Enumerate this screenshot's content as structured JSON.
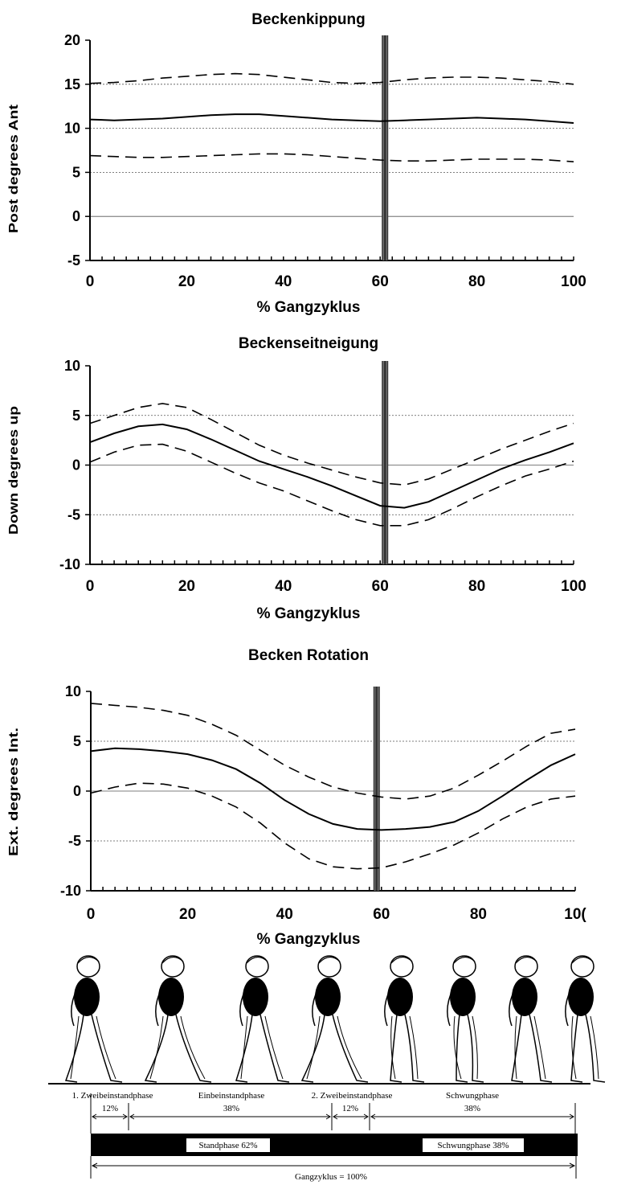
{
  "chart_data": [
    {
      "type": "line",
      "title": "Beckenkippung",
      "xlabel": "% Gangzyklus",
      "ylabel": "Post degrees Ant",
      "xlim": [
        0,
        100
      ],
      "ylim": [
        -5,
        20
      ],
      "xticks": [
        "0",
        "20",
        "40",
        "60",
        "80",
        "100"
      ],
      "yticks": [
        "20",
        "15",
        "10",
        "5",
        "0",
        "-5"
      ],
      "grid_y": [
        15,
        10,
        5,
        0
      ],
      "marker_x": 61,
      "series": [
        {
          "style": "solid",
          "x": [
            0,
            5,
            10,
            15,
            20,
            25,
            30,
            35,
            40,
            45,
            50,
            55,
            60,
            65,
            70,
            75,
            80,
            85,
            90,
            95,
            100
          ],
          "y": [
            11.0,
            10.9,
            11.0,
            11.1,
            11.3,
            11.5,
            11.6,
            11.6,
            11.4,
            11.2,
            11.0,
            10.9,
            10.8,
            10.9,
            11.0,
            11.1,
            11.2,
            11.1,
            11.0,
            10.8,
            10.6
          ]
        },
        {
          "style": "dashed",
          "x": [
            0,
            5,
            10,
            15,
            20,
            25,
            30,
            35,
            40,
            45,
            50,
            55,
            60,
            65,
            70,
            75,
            80,
            85,
            90,
            95,
            100
          ],
          "y": [
            15.1,
            15.2,
            15.4,
            15.7,
            15.9,
            16.1,
            16.2,
            16.1,
            15.8,
            15.5,
            15.2,
            15.1,
            15.2,
            15.5,
            15.7,
            15.8,
            15.8,
            15.7,
            15.5,
            15.3,
            15.0
          ]
        },
        {
          "style": "dashed",
          "x": [
            0,
            5,
            10,
            15,
            20,
            25,
            30,
            35,
            40,
            45,
            50,
            55,
            60,
            65,
            70,
            75,
            80,
            85,
            90,
            95,
            100
          ],
          "y": [
            6.9,
            6.8,
            6.7,
            6.7,
            6.8,
            6.9,
            7.0,
            7.1,
            7.1,
            7.0,
            6.8,
            6.6,
            6.4,
            6.3,
            6.3,
            6.4,
            6.5,
            6.5,
            6.5,
            6.4,
            6.2
          ]
        }
      ]
    },
    {
      "type": "line",
      "title": "Beckenseitneigung",
      "xlabel": "% Gangzyklus",
      "ylabel": "Down degrees up",
      "xlim": [
        0,
        100
      ],
      "ylim": [
        -10,
        10
      ],
      "xticks": [
        "0",
        "20",
        "40",
        "60",
        "80",
        "100"
      ],
      "yticks": [
        "10",
        "5",
        "0",
        "-5",
        "-10"
      ],
      "grid_y": [
        5,
        0,
        -5
      ],
      "marker_x": 61,
      "series": [
        {
          "style": "solid",
          "x": [
            0,
            5,
            10,
            15,
            20,
            25,
            30,
            35,
            40,
            45,
            50,
            55,
            60,
            65,
            70,
            75,
            80,
            85,
            90,
            95,
            100
          ],
          "y": [
            2.3,
            3.2,
            3.9,
            4.1,
            3.6,
            2.6,
            1.5,
            0.4,
            -0.4,
            -1.2,
            -2.1,
            -3.1,
            -4.1,
            -4.3,
            -3.7,
            -2.6,
            -1.5,
            -0.4,
            0.5,
            1.3,
            2.2
          ]
        },
        {
          "style": "dashed",
          "x": [
            0,
            5,
            10,
            15,
            20,
            25,
            30,
            35,
            40,
            45,
            50,
            55,
            60,
            65,
            70,
            75,
            80,
            85,
            90,
            95,
            100
          ],
          "y": [
            4.2,
            5.0,
            5.8,
            6.2,
            5.8,
            4.6,
            3.3,
            2.0,
            1.0,
            0.2,
            -0.5,
            -1.2,
            -1.8,
            -2.0,
            -1.4,
            -0.4,
            0.6,
            1.6,
            2.5,
            3.4,
            4.2
          ]
        },
        {
          "style": "dashed",
          "x": [
            0,
            5,
            10,
            15,
            20,
            25,
            30,
            35,
            40,
            45,
            50,
            55,
            60,
            65,
            70,
            75,
            80,
            85,
            90,
            95,
            100
          ],
          "y": [
            0.3,
            1.3,
            2.0,
            2.1,
            1.4,
            0.3,
            -0.8,
            -1.8,
            -2.6,
            -3.6,
            -4.6,
            -5.5,
            -6.1,
            -6.1,
            -5.5,
            -4.4,
            -3.2,
            -2.1,
            -1.1,
            -0.4,
            0.4
          ]
        }
      ]
    },
    {
      "type": "line",
      "title": "Becken Rotation",
      "xlabel": "% Gangzyklus",
      "ylabel": "Ext. degrees Int.",
      "xlim": [
        0,
        100
      ],
      "ylim": [
        -10,
        10
      ],
      "xticks": [
        "0",
        "20",
        "40",
        "60",
        "80",
        "10("
      ],
      "yticks": [
        "10",
        "5",
        "0",
        "-5",
        "-10"
      ],
      "grid_y": [
        5,
        0,
        -5
      ],
      "marker_x": 59,
      "series": [
        {
          "style": "solid",
          "x": [
            0,
            5,
            10,
            15,
            20,
            25,
            30,
            35,
            40,
            45,
            50,
            55,
            60,
            65,
            70,
            75,
            80,
            85,
            90,
            95,
            100
          ],
          "y": [
            4.0,
            4.3,
            4.2,
            4.0,
            3.7,
            3.1,
            2.2,
            0.8,
            -0.9,
            -2.3,
            -3.3,
            -3.8,
            -3.9,
            -3.8,
            -3.6,
            -3.1,
            -2.0,
            -0.5,
            1.1,
            2.6,
            3.7
          ]
        },
        {
          "style": "dashed",
          "x": [
            0,
            5,
            10,
            15,
            20,
            25,
            30,
            35,
            40,
            45,
            50,
            55,
            60,
            65,
            70,
            75,
            80,
            85,
            90,
            95,
            100
          ],
          "y": [
            8.8,
            8.6,
            8.4,
            8.1,
            7.6,
            6.7,
            5.6,
            4.1,
            2.6,
            1.4,
            0.4,
            -0.2,
            -0.6,
            -0.8,
            -0.5,
            0.3,
            1.6,
            3.0,
            4.5,
            5.8,
            6.2
          ]
        },
        {
          "style": "dashed",
          "x": [
            0,
            5,
            10,
            15,
            20,
            25,
            30,
            35,
            40,
            45,
            50,
            55,
            60,
            65,
            70,
            75,
            80,
            85,
            90,
            95,
            100
          ],
          "y": [
            -0.2,
            0.4,
            0.8,
            0.7,
            0.3,
            -0.5,
            -1.6,
            -3.2,
            -5.2,
            -6.8,
            -7.6,
            -7.8,
            -7.7,
            -7.1,
            -6.3,
            -5.4,
            -4.2,
            -2.8,
            -1.6,
            -0.8,
            -0.5
          ]
        }
      ]
    }
  ],
  "gait": {
    "phase_labels": [
      {
        "name": "1. Zweibeinstandphase",
        "pct": "12%"
      },
      {
        "name": "Einbeinstandphase",
        "pct": "38%"
      },
      {
        "name": "2. Zweibeinstandphase",
        "pct": "12%"
      },
      {
        "name": "Schwungphase",
        "pct": "38%"
      }
    ],
    "bar_stand": "Standphase 62%",
    "bar_swing": "Schwungphase 38%",
    "cycle": "Gangzyklus = 100%"
  }
}
